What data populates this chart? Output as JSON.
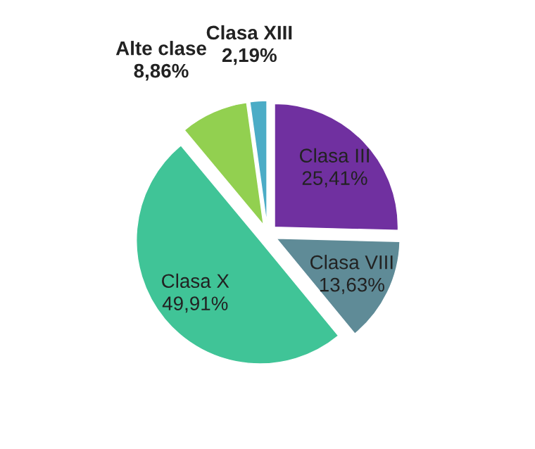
{
  "chart_data": {
    "type": "pie",
    "categories": [
      "Clasa XIII",
      "Alte clase",
      "Clasa X",
      "Clasa VIII",
      "Clasa III"
    ],
    "values": [
      2.19,
      8.86,
      49.91,
      13.63,
      25.41
    ],
    "value_labels": [
      "2,19%",
      "8,86%",
      "49,91%",
      "13,63%",
      "25,41%"
    ],
    "colors": [
      "#4bacc6",
      "#92d050",
      "#40c497",
      "#5f8b97",
      "#7030a0"
    ],
    "legend": false
  }
}
